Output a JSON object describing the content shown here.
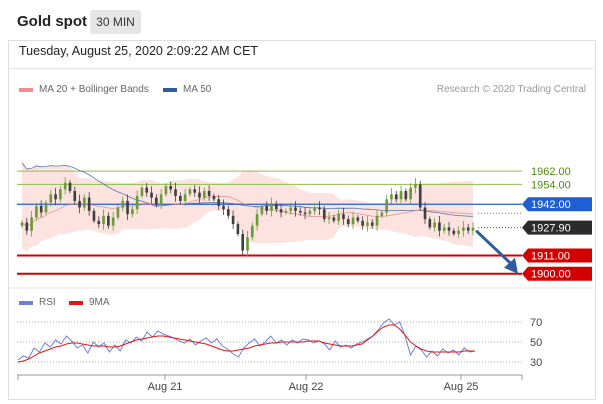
{
  "header": {
    "title": "Gold spot",
    "timeframe": "30 MIN"
  },
  "timestamp": "Tuesday, August 25, 2020 2:09:22 AM CET",
  "legend": {
    "ma20": {
      "label": "MA 20 + Bollinger Bands",
      "color": "#f28b8b"
    },
    "ma50": {
      "label": "MA 50",
      "color": "#2c5d9e"
    },
    "credit": "Research © 2020 Trading Central"
  },
  "rsi_legend": {
    "rsi": {
      "label": "RSI",
      "color": "#6f7fd8"
    },
    "ma9": {
      "label": "9MA",
      "color": "#e31515"
    }
  },
  "chart_data": [
    {
      "type": "candlestick",
      "title": "",
      "ylim": [
        1895,
        2005
      ],
      "x_tick_labels": [
        "Aug 21",
        "Aug 22",
        "Aug 25"
      ],
      "levels": [
        {
          "label": "1962.00",
          "value": 1962.0,
          "kind": "resistance",
          "color": "#8fbc4b"
        },
        {
          "label": "1954.00",
          "value": 1954.0,
          "kind": "resistance",
          "color": "#8fbc4b"
        },
        {
          "label": "1942.00",
          "value": 1942.0,
          "kind": "pivot",
          "color": "#1f5fd6"
        },
        {
          "label": "1927.90",
          "value": 1927.9,
          "kind": "last",
          "color": "#2b2b2b"
        },
        {
          "label": "1911.00",
          "value": 1911.0,
          "kind": "support",
          "color": "#d40000"
        },
        {
          "label": "1900.00",
          "value": 1900.0,
          "kind": "support",
          "color": "#d40000"
        }
      ],
      "projection": {
        "from": 1925.5,
        "to": 1900.0,
        "color": "#2c5d9e"
      },
      "closes": [
        1931,
        1926,
        1934,
        1941,
        1937,
        1943,
        1948,
        1945,
        1951,
        1955,
        1950,
        1944,
        1940,
        1946,
        1938,
        1932,
        1930,
        1935,
        1929,
        1934,
        1940,
        1944,
        1936,
        1939,
        1947,
        1952,
        1949,
        1946,
        1942,
        1948,
        1953,
        1951,
        1947,
        1944,
        1948,
        1951,
        1949,
        1946,
        1950,
        1947,
        1945,
        1941,
        1939,
        1935,
        1930,
        1924,
        1914,
        1922,
        1929,
        1936,
        1941,
        1938,
        1942,
        1939,
        1937,
        1938,
        1940,
        1938,
        1937,
        1936,
        1938,
        1940,
        1939,
        1933,
        1934,
        1932,
        1936,
        1933,
        1930,
        1934,
        1932,
        1929,
        1931,
        1929,
        1935,
        1937,
        1945,
        1948,
        1945,
        1950,
        1945,
        1952,
        1954,
        1940,
        1933,
        1928,
        1931,
        1926,
        1928,
        1926,
        1924,
        1926,
        1928,
        1926,
        1927.9
      ]
    },
    {
      "type": "line",
      "title": "RSI",
      "ylim": [
        20,
        76
      ],
      "y_ticks": [
        70,
        50,
        30
      ],
      "series": [
        {
          "name": "RSI",
          "color": "#6f7fd8",
          "values": [
            32,
            36,
            34,
            44,
            40,
            49,
            45,
            52,
            48,
            56,
            51,
            44,
            47,
            39,
            50,
            45,
            49,
            40,
            47,
            41,
            52,
            49,
            55,
            51,
            60,
            55,
            61,
            58,
            56,
            54,
            51,
            49,
            53,
            47,
            51,
            54,
            49,
            53,
            46,
            43,
            38,
            35,
            44,
            49,
            53,
            46,
            50,
            56,
            49,
            52,
            47,
            52,
            49,
            53,
            52,
            49,
            51,
            48,
            42,
            51,
            45,
            47,
            44,
            48,
            50,
            53,
            56,
            62,
            69,
            73,
            67,
            70,
            56,
            37,
            46,
            42,
            35,
            41,
            36,
            43,
            39,
            42,
            37,
            44,
            40,
            41
          ]
        },
        {
          "name": "9MA",
          "color": "#e31515",
          "values": [
            30,
            31,
            33,
            36,
            39,
            41,
            43,
            45,
            46,
            48,
            49,
            49,
            48,
            47,
            46,
            46,
            46,
            45,
            45,
            46,
            48,
            50,
            52,
            53,
            54,
            55,
            56,
            56,
            55,
            54,
            53,
            52,
            51,
            50,
            49,
            48,
            46,
            44,
            42,
            41,
            41,
            42,
            43,
            44,
            46,
            47,
            48,
            49,
            49,
            50,
            50,
            50,
            50,
            50,
            51,
            51,
            51,
            49,
            48,
            47,
            46,
            46,
            46,
            47,
            48,
            52,
            56,
            61,
            65,
            67,
            67,
            63,
            57,
            50,
            46,
            43,
            41,
            40,
            40,
            40,
            40,
            40,
            40,
            41,
            41,
            41
          ]
        }
      ]
    }
  ]
}
